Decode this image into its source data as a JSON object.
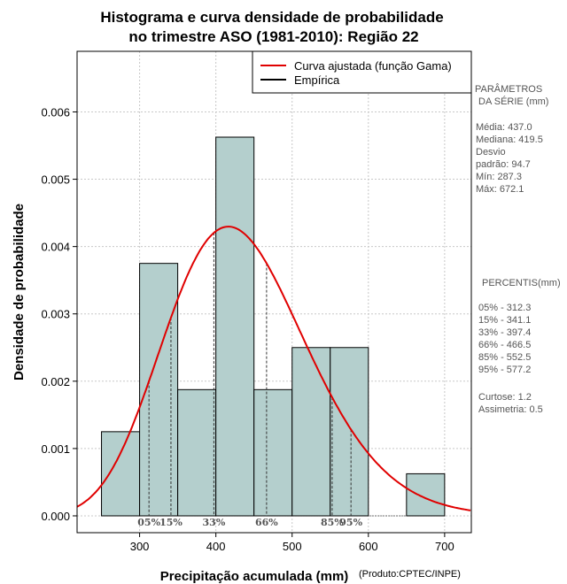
{
  "chart_data": {
    "type": "histogram",
    "title_line1": "Histograma e curva densidade de probabilidade",
    "title_line2": "no trimestre ASO (1981-2010): Região 22",
    "xlabel": "Precipitação acumulada (mm)",
    "ylabel": "Densidade de probabilidade",
    "credit": "(Produto:CPTEC/INPE)",
    "xlim": [
      218,
      735
    ],
    "ylim": [
      -0.00025,
      0.0069
    ],
    "xticks": [
      300,
      400,
      500,
      600,
      700
    ],
    "yticks": [
      0.0,
      0.001,
      0.002,
      0.003,
      0.004,
      0.005,
      0.006
    ],
    "ytick_labels": [
      "0.000",
      "0.001",
      "0.002",
      "0.003",
      "0.004",
      "0.005",
      "0.006"
    ],
    "grid": true,
    "bars": [
      {
        "x0": 250,
        "x1": 300,
        "density": 0.00125
      },
      {
        "x0": 300,
        "x1": 350,
        "density": 0.00375
      },
      {
        "x0": 350,
        "x1": 400,
        "density": 0.001875
      },
      {
        "x0": 400,
        "x1": 450,
        "density": 0.005625
      },
      {
        "x0": 450,
        "x1": 500,
        "density": 0.001875
      },
      {
        "x0": 500,
        "x1": 550,
        "density": 0.0025
      },
      {
        "x0": 550,
        "x1": 600,
        "density": 0.0025
      },
      {
        "x0": 650,
        "x1": 700,
        "density": 0.000625
      }
    ],
    "bar_color": "#b4cfcd",
    "gamma_fit": {
      "shape": 21.28,
      "rate": 0.0487,
      "color": "#e00000"
    },
    "legend": {
      "position": "top-right",
      "entries": [
        {
          "label": "Curva ajustada (função Gama)",
          "color": "#e00000"
        },
        {
          "label": "Empírica",
          "color": "#000000"
        }
      ]
    },
    "percentile_markers": [
      {
        "label": "05%",
        "value": 312.3
      },
      {
        "label": "15%",
        "value": 341.1
      },
      {
        "label": "33%",
        "value": 397.4
      },
      {
        "label": "66%",
        "value": 466.5
      },
      {
        "label": "85%",
        "value": 552.5
      },
      {
        "label": "95%",
        "value": 577.2
      }
    ]
  },
  "side_panel": {
    "params_header1": "PARÂMETROS",
    "params_header2": "DA SÉRIE (mm)",
    "params": [
      "Média:  437.0",
      "Mediana:  419.5",
      "Desvio",
      "padrão:  94.7",
      "Mín:  287.3",
      "Máx:  672.1"
    ],
    "pct_header": "PERCENTIS(mm)",
    "pcts": [
      "05% -   312.3",
      "15% -   341.1",
      "33% -   397.4",
      "66% -   466.5",
      "85% -   552.5",
      "95% -   577.2"
    ],
    "extra": [
      "Curtose:  1.2",
      "Assimetria:  0.5"
    ]
  }
}
